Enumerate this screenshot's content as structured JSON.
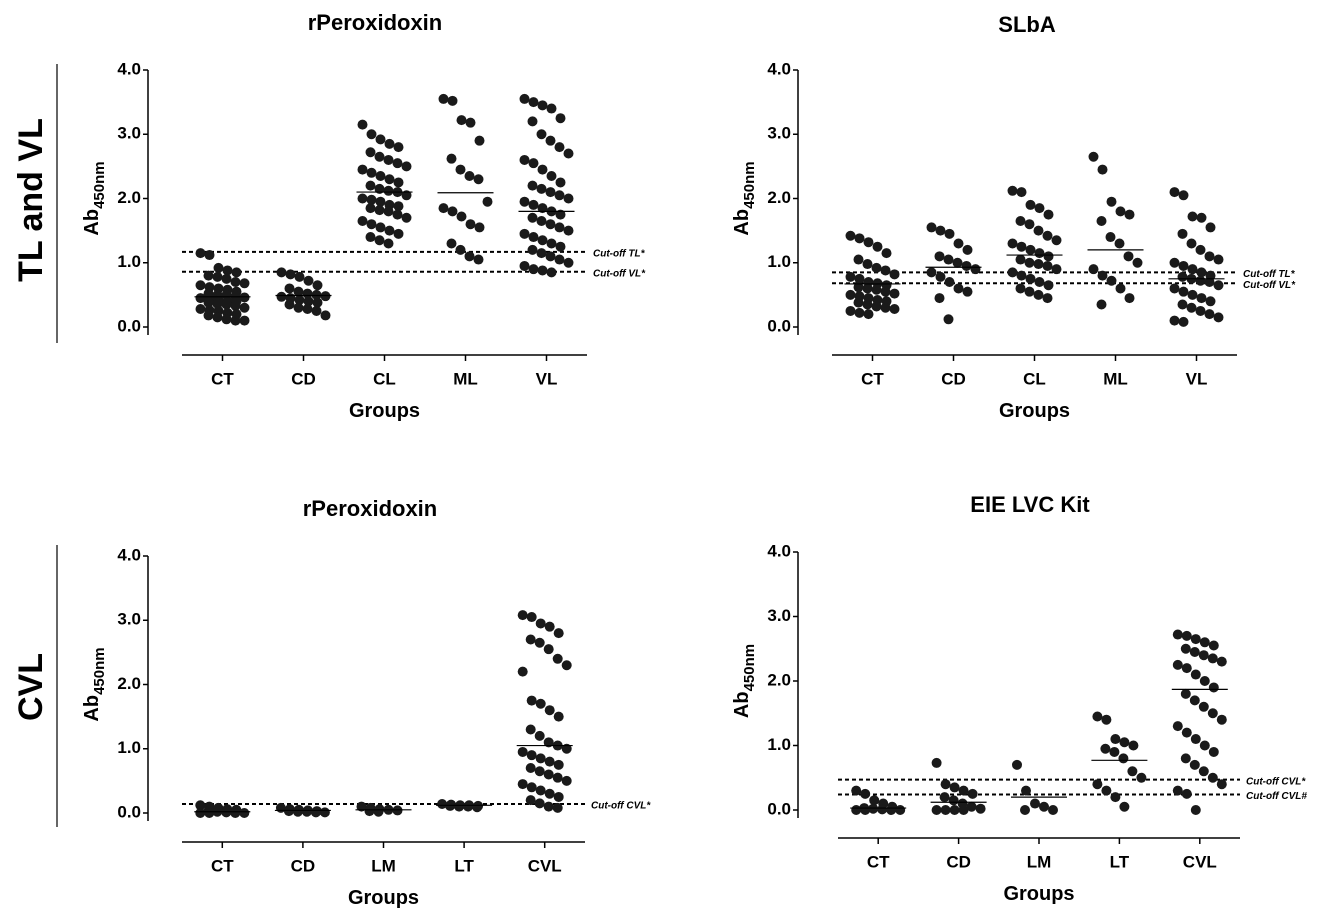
{
  "row_labels": [
    "TL and VL",
    "CVL"
  ],
  "chart_data": [
    {
      "type": "dotplot",
      "title": "rPeroxidoxin",
      "xlabel": "Groups",
      "ylabel": "Ab",
      "ylabel_sub": "450nm",
      "categories": [
        "CT",
        "CD",
        "CL",
        "ML",
        "VL"
      ],
      "ylim": [
        0,
        4
      ],
      "yticks": [
        {
          "value": 0,
          "label": "0.0"
        },
        {
          "value": 1,
          "label": "1.0"
        },
        {
          "value": 2,
          "label": "2.0"
        },
        {
          "value": 3,
          "label": "3.0"
        },
        {
          "value": 4,
          "label": "4.0"
        }
      ],
      "color": "#1a1a1a",
      "values": [
        [
          1.15,
          1.12,
          0.92,
          0.88,
          0.85,
          0.8,
          0.78,
          0.75,
          0.7,
          0.68,
          0.65,
          0.62,
          0.6,
          0.58,
          0.55,
          0.52,
          0.5,
          0.5,
          0.48,
          0.46,
          0.45,
          0.44,
          0.42,
          0.4,
          0.4,
          0.38,
          0.36,
          0.35,
          0.33,
          0.3,
          0.28,
          0.26,
          0.25,
          0.22,
          0.2,
          0.18,
          0.15,
          0.12,
          0.1,
          0.1
        ],
        [
          0.85,
          0.82,
          0.78,
          0.72,
          0.65,
          0.6,
          0.55,
          0.52,
          0.5,
          0.48,
          0.47,
          0.45,
          0.42,
          0.4,
          0.38,
          0.35,
          0.3,
          0.28,
          0.25,
          0.18
        ],
        [
          3.15,
          3.0,
          2.92,
          2.85,
          2.8,
          2.72,
          2.65,
          2.6,
          2.55,
          2.5,
          2.45,
          2.4,
          2.35,
          2.3,
          2.25,
          2.2,
          2.15,
          2.12,
          2.1,
          2.05,
          2.0,
          1.98,
          1.95,
          1.9,
          1.88,
          1.85,
          1.82,
          1.8,
          1.75,
          1.7,
          1.65,
          1.6,
          1.55,
          1.5,
          1.45,
          1.4,
          1.35,
          1.3
        ],
        [
          3.55,
          3.52,
          3.22,
          3.18,
          2.9,
          2.62,
          2.45,
          2.35,
          2.3,
          1.95,
          1.85,
          1.8,
          1.72,
          1.6,
          1.55,
          1.3,
          1.2,
          1.1,
          1.05
        ],
        [
          3.55,
          3.5,
          3.45,
          3.4,
          3.25,
          3.2,
          3.0,
          2.9,
          2.8,
          2.7,
          2.6,
          2.55,
          2.45,
          2.35,
          2.25,
          2.2,
          2.15,
          2.1,
          2.05,
          2.0,
          1.95,
          1.9,
          1.85,
          1.8,
          1.75,
          1.7,
          1.65,
          1.6,
          1.55,
          1.5,
          1.45,
          1.4,
          1.35,
          1.3,
          1.25,
          1.2,
          1.15,
          1.1,
          1.05,
          1.0,
          0.95,
          0.9,
          0.88,
          0.85
        ]
      ],
      "means": [
        0.47,
        0.49,
        2.1,
        2.09,
        1.8
      ],
      "cutoffs": [
        {
          "label": "Cut-off TL*",
          "value": 1.17
        },
        {
          "label": "Cut-off VL*",
          "value": 0.86
        }
      ]
    },
    {
      "type": "dotplot",
      "title": "SLbA",
      "xlabel": "Groups",
      "ylabel": "Ab",
      "ylabel_sub": "450nm",
      "categories": [
        "CT",
        "CD",
        "CL",
        "ML",
        "VL"
      ],
      "ylim": [
        0,
        4
      ],
      "yticks": [
        {
          "value": 0,
          "label": "0.0"
        },
        {
          "value": 1,
          "label": "1.0"
        },
        {
          "value": 2,
          "label": "2.0"
        },
        {
          "value": 3,
          "label": "3.0"
        },
        {
          "value": 4,
          "label": "4.0"
        }
      ],
      "color": "#1a1a1a",
      "values": [
        [
          1.42,
          1.38,
          1.32,
          1.25,
          1.15,
          1.05,
          0.98,
          0.92,
          0.88,
          0.82,
          0.78,
          0.75,
          0.7,
          0.68,
          0.65,
          0.62,
          0.6,
          0.58,
          0.55,
          0.52,
          0.5,
          0.48,
          0.45,
          0.42,
          0.4,
          0.38,
          0.35,
          0.32,
          0.3,
          0.28,
          0.25,
          0.22,
          0.2
        ],
        [
          1.55,
          1.5,
          1.45,
          1.3,
          1.2,
          1.1,
          1.05,
          1.0,
          0.95,
          0.9,
          0.85,
          0.78,
          0.7,
          0.6,
          0.55,
          0.45,
          0.12
        ],
        [
          2.12,
          2.1,
          1.9,
          1.85,
          1.75,
          1.65,
          1.6,
          1.5,
          1.42,
          1.35,
          1.3,
          1.25,
          1.2,
          1.15,
          1.1,
          1.05,
          1.0,
          0.98,
          0.95,
          0.9,
          0.85,
          0.8,
          0.75,
          0.7,
          0.65,
          0.6,
          0.55,
          0.5,
          0.45
        ],
        [
          2.65,
          2.45,
          1.95,
          1.8,
          1.75,
          1.65,
          1.4,
          1.3,
          1.1,
          1.0,
          0.9,
          0.8,
          0.72,
          0.6,
          0.45,
          0.35
        ],
        [
          2.1,
          2.05,
          1.72,
          1.7,
          1.55,
          1.45,
          1.3,
          1.2,
          1.1,
          1.05,
          1.0,
          0.95,
          0.9,
          0.85,
          0.8,
          0.78,
          0.75,
          0.72,
          0.7,
          0.65,
          0.6,
          0.55,
          0.5,
          0.45,
          0.4,
          0.35,
          0.3,
          0.25,
          0.2,
          0.15,
          0.1,
          0.08
        ]
      ],
      "means": [
        0.67,
        0.93,
        1.12,
        1.2,
        0.75
      ],
      "cutoffs": [
        {
          "label": "Cut-off TL*",
          "value": 0.85
        },
        {
          "label": "Cut-off VL*",
          "value": 0.68
        }
      ]
    },
    {
      "type": "dotplot",
      "title": "rPeroxidoxin",
      "xlabel": "Groups",
      "ylabel": "Ab",
      "ylabel_sub": "450nm",
      "categories": [
        "CT",
        "CD",
        "LM",
        "LT",
        "CVL"
      ],
      "ylim": [
        0,
        4
      ],
      "yticks": [
        {
          "value": 0,
          "label": "0.0"
        },
        {
          "value": 1,
          "label": "1.0"
        },
        {
          "value": 2,
          "label": "2.0"
        },
        {
          "value": 3,
          "label": "3.0"
        },
        {
          "value": 4,
          "label": "4.0"
        }
      ],
      "color": "#1a1a1a",
      "values": [
        [
          0.12,
          0.1,
          0.08,
          0.06,
          0.05,
          0.03,
          0.02,
          0.01,
          0,
          0,
          0,
          0
        ],
        [
          0.08,
          0.06,
          0.05,
          0.04,
          0.03,
          0.03,
          0.02,
          0.02,
          0.01,
          0.01
        ],
        [
          0.1,
          0.08,
          0.06,
          0.05,
          0.04,
          0.03,
          0.02
        ],
        [
          0.14,
          0.13,
          0.12,
          0.12,
          0.11,
          0.11,
          0.1,
          0.1,
          0.09
        ],
        [
          3.08,
          3.05,
          2.95,
          2.9,
          2.8,
          2.7,
          2.65,
          2.55,
          2.4,
          2.3,
          2.2,
          1.75,
          1.7,
          1.6,
          1.5,
          1.3,
          1.2,
          1.1,
          1.05,
          1.0,
          0.95,
          0.9,
          0.85,
          0.8,
          0.75,
          0.7,
          0.65,
          0.6,
          0.55,
          0.5,
          0.45,
          0.4,
          0.35,
          0.3,
          0.25,
          0.2,
          0.15,
          0.1,
          0.08
        ]
      ],
      "means": [
        0.02,
        0.04,
        0.05,
        0.12,
        1.05
      ],
      "cutoffs": [
        {
          "label": "Cut-off CVL*",
          "value": 0.14
        }
      ]
    },
    {
      "type": "dotplot",
      "title": "EIE LVC Kit",
      "xlabel": "Groups",
      "ylabel": "Ab",
      "ylabel_sub": "450nm",
      "categories": [
        "CT",
        "CD",
        "LM",
        "LT",
        "CVL"
      ],
      "ylim": [
        0,
        4
      ],
      "yticks": [
        {
          "value": 0,
          "label": "0.0"
        },
        {
          "value": 1,
          "label": "1.0"
        },
        {
          "value": 2,
          "label": "2.0"
        },
        {
          "value": 3,
          "label": "3.0"
        },
        {
          "value": 4,
          "label": "4.0"
        }
      ],
      "color": "#1a1a1a",
      "values": [
        [
          0.3,
          0.25,
          0.15,
          0.1,
          0.05,
          0.03,
          0.02,
          0.01,
          0,
          0,
          0,
          0
        ],
        [
          0.73,
          0.4,
          0.35,
          0.3,
          0.25,
          0.2,
          0.15,
          0.1,
          0.05,
          0.02,
          0,
          0,
          0,
          0
        ],
        [
          0.7,
          0.3,
          0.1,
          0.05,
          0,
          0
        ],
        [
          1.45,
          1.4,
          1.1,
          1.05,
          1.0,
          0.95,
          0.9,
          0.8,
          0.6,
          0.5,
          0.4,
          0.3,
          0.2,
          0.05
        ],
        [
          2.72,
          2.7,
          2.65,
          2.6,
          2.55,
          2.5,
          2.45,
          2.4,
          2.35,
          2.3,
          2.25,
          2.2,
          2.1,
          2.0,
          1.9,
          1.8,
          1.7,
          1.6,
          1.5,
          1.4,
          1.3,
          1.2,
          1.1,
          1.0,
          0.9,
          0.8,
          0.7,
          0.6,
          0.5,
          0.4,
          0.3,
          0.25,
          0
        ]
      ],
      "means": [
        0.03,
        0.12,
        0.2,
        0.77,
        1.87
      ],
      "cutoffs": [
        {
          "label": "Cut-off CVL*",
          "value": 0.47
        },
        {
          "label": "Cut-off CVL#",
          "value": 0.24
        }
      ]
    }
  ]
}
